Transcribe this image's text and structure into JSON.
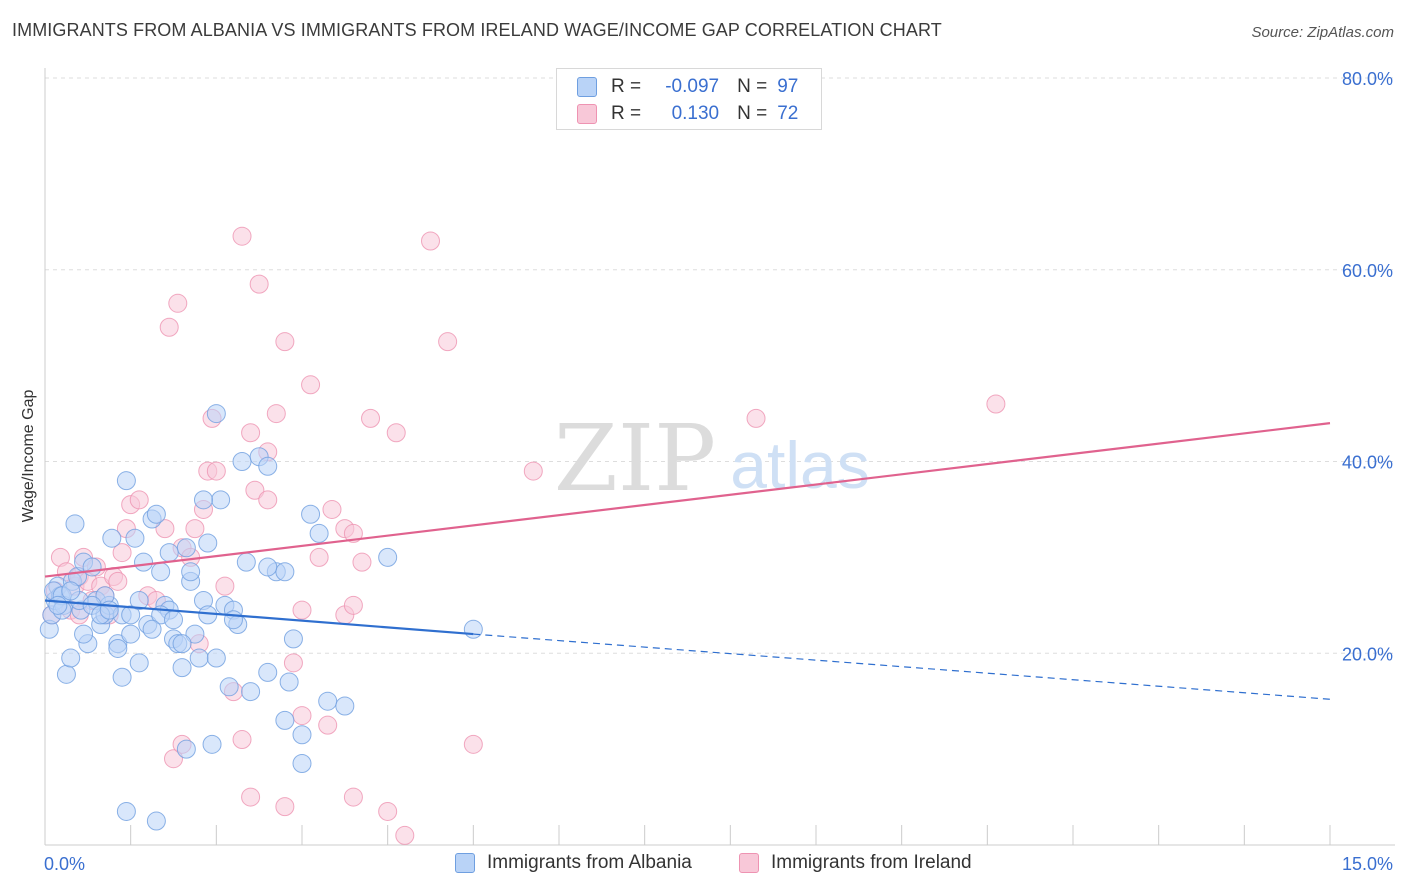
{
  "title": "IMMIGRANTS FROM ALBANIA VS IMMIGRANTS FROM IRELAND WAGE/INCOME GAP CORRELATION CHART",
  "source": "Source: ZipAtlas.com",
  "watermark": {
    "zip": "ZIP",
    "atlas": "atlas"
  },
  "stats": [
    {
      "r_label": "R =",
      "r_value": "-0.097",
      "n_label": "N =",
      "n_value": "97"
    },
    {
      "r_label": "R =",
      "r_value": "0.130",
      "n_label": "N =",
      "n_value": "72"
    }
  ],
  "colors": {
    "albania_fill": "#b9d3f7",
    "albania_stroke": "#6f9fe0",
    "albania_line": "#2f6fcf",
    "ireland_fill": "#f8c8d8",
    "ireland_stroke": "#ee93b2",
    "ireland_line": "#e0628e",
    "axis_label": "#3a6fd0",
    "grid": "#dddddd"
  },
  "chart_data": {
    "type": "scatter",
    "title": "IMMIGRANTS FROM ALBANIA VS IMMIGRANTS FROM IRELAND WAGE/INCOME GAP CORRELATION CHART",
    "xlabel": "",
    "ylabel": "Wage/Income Gap",
    "xlim": [
      0,
      15
    ],
    "ylim": [
      0,
      80
    ],
    "x_tick_labels": [
      {
        "value": 0,
        "label": "0.0%"
      },
      {
        "value": 15,
        "label": "15.0%"
      }
    ],
    "y_tick_labels": [
      {
        "value": 20,
        "label": "20.0%"
      },
      {
        "value": 40,
        "label": "40.0%"
      },
      {
        "value": 60,
        "label": "60.0%"
      },
      {
        "value": 80,
        "label": "80.0%"
      }
    ],
    "legend": [
      "Immigrants from Albania",
      "Immigrants from Ireland"
    ],
    "series": [
      {
        "name": "Immigrants from Albania",
        "points": [
          [
            0.05,
            22.5
          ],
          [
            0.08,
            24.0
          ],
          [
            0.12,
            25.5
          ],
          [
            0.15,
            27.0
          ],
          [
            0.18,
            26.0
          ],
          [
            0.22,
            25.0
          ],
          [
            0.25,
            17.8
          ],
          [
            0.3,
            19.5
          ],
          [
            0.32,
            27.5
          ],
          [
            0.35,
            33.5
          ],
          [
            0.38,
            28.0
          ],
          [
            0.42,
            24.5
          ],
          [
            0.45,
            29.5
          ],
          [
            0.5,
            21.0
          ],
          [
            0.55,
            29.0
          ],
          [
            0.6,
            25.5
          ],
          [
            0.65,
            23.0
          ],
          [
            0.7,
            24.0
          ],
          [
            0.75,
            25.0
          ],
          [
            0.78,
            32.0
          ],
          [
            0.85,
            21.0
          ],
          [
            0.9,
            17.5
          ],
          [
            0.95,
            38.0
          ],
          [
            1.0,
            22.0
          ],
          [
            1.05,
            32.0
          ],
          [
            1.1,
            19.0
          ],
          [
            1.15,
            29.5
          ],
          [
            1.2,
            23.0
          ],
          [
            1.25,
            34.0
          ],
          [
            1.3,
            34.5
          ],
          [
            1.35,
            28.5
          ],
          [
            1.4,
            25.0
          ],
          [
            1.45,
            24.5
          ],
          [
            1.5,
            21.5
          ],
          [
            1.55,
            21.0
          ],
          [
            1.6,
            18.5
          ],
          [
            1.65,
            31.0
          ],
          [
            1.7,
            27.5
          ],
          [
            1.75,
            22.0
          ],
          [
            1.8,
            19.5
          ],
          [
            1.85,
            25.5
          ],
          [
            1.9,
            24.0
          ],
          [
            1.95,
            10.5
          ],
          [
            2.0,
            45.0
          ],
          [
            2.05,
            36.0
          ],
          [
            2.1,
            25.0
          ],
          [
            2.15,
            16.5
          ],
          [
            2.2,
            24.5
          ],
          [
            2.25,
            23.0
          ],
          [
            2.3,
            40.0
          ],
          [
            2.4,
            16.0
          ],
          [
            2.5,
            40.5
          ],
          [
            2.6,
            18.0
          ],
          [
            2.7,
            28.5
          ],
          [
            2.8,
            13.0
          ],
          [
            2.85,
            17.0
          ],
          [
            2.9,
            21.5
          ],
          [
            3.0,
            11.5
          ],
          [
            3.1,
            34.5
          ],
          [
            3.2,
            32.5
          ],
          [
            3.3,
            15.0
          ],
          [
            3.5,
            14.5
          ],
          [
            0.1,
            26.5
          ],
          [
            0.2,
            26.0
          ],
          [
            0.4,
            25.5
          ],
          [
            0.7,
            26.0
          ],
          [
            0.9,
            24.0
          ],
          [
            1.35,
            24.0
          ],
          [
            1.6,
            21.0
          ],
          [
            1.9,
            31.5
          ],
          [
            2.0,
            19.5
          ],
          [
            2.2,
            23.5
          ],
          [
            2.6,
            39.5
          ],
          [
            2.8,
            28.5
          ],
          [
            1.0,
            24.0
          ],
          [
            0.55,
            25.0
          ],
          [
            0.3,
            26.5
          ],
          [
            1.25,
            22.5
          ],
          [
            0.65,
            24.0
          ],
          [
            1.45,
            30.5
          ],
          [
            0.95,
            3.5
          ],
          [
            1.3,
            2.5
          ],
          [
            1.65,
            10.0
          ],
          [
            3.0,
            8.5
          ],
          [
            2.6,
            29.0
          ],
          [
            1.1,
            25.5
          ],
          [
            0.85,
            20.5
          ],
          [
            0.45,
            22.0
          ],
          [
            1.7,
            28.5
          ],
          [
            0.2,
            24.5
          ],
          [
            1.5,
            23.5
          ],
          [
            4.0,
            30.0
          ],
          [
            5.0,
            22.5
          ],
          [
            0.15,
            25.0
          ],
          [
            2.35,
            29.5
          ],
          [
            1.85,
            36.0
          ],
          [
            0.75,
            24.5
          ]
        ]
      },
      {
        "name": "Immigrants from Ireland",
        "points": [
          [
            0.08,
            24.0
          ],
          [
            0.12,
            26.5
          ],
          [
            0.18,
            30.0
          ],
          [
            0.25,
            28.5
          ],
          [
            0.3,
            24.5
          ],
          [
            0.35,
            27.0
          ],
          [
            0.4,
            28.0
          ],
          [
            0.45,
            30.0
          ],
          [
            0.5,
            27.5
          ],
          [
            0.55,
            25.5
          ],
          [
            0.6,
            29.0
          ],
          [
            0.65,
            27.0
          ],
          [
            0.7,
            26.0
          ],
          [
            0.75,
            24.0
          ],
          [
            0.8,
            28.0
          ],
          [
            0.85,
            27.5
          ],
          [
            0.9,
            30.5
          ],
          [
            0.95,
            33.0
          ],
          [
            1.0,
            35.5
          ],
          [
            1.1,
            36.0
          ],
          [
            1.2,
            26.0
          ],
          [
            1.3,
            25.5
          ],
          [
            1.4,
            33.0
          ],
          [
            1.45,
            54.0
          ],
          [
            1.55,
            56.5
          ],
          [
            1.6,
            31.0
          ],
          [
            1.7,
            30.0
          ],
          [
            1.75,
            33.0
          ],
          [
            1.85,
            35.0
          ],
          [
            1.9,
            39.0
          ],
          [
            1.95,
            44.5
          ],
          [
            2.0,
            39.0
          ],
          [
            2.1,
            27.0
          ],
          [
            2.2,
            16.0
          ],
          [
            2.3,
            63.5
          ],
          [
            2.4,
            43.0
          ],
          [
            2.45,
            37.0
          ],
          [
            2.5,
            58.5
          ],
          [
            2.6,
            36.0
          ],
          [
            2.7,
            45.0
          ],
          [
            2.8,
            52.5
          ],
          [
            2.9,
            19.0
          ],
          [
            3.0,
            13.5
          ],
          [
            3.1,
            48.0
          ],
          [
            3.2,
            30.0
          ],
          [
            3.35,
            35.0
          ],
          [
            3.5,
            33.0
          ],
          [
            3.6,
            32.5
          ],
          [
            3.7,
            29.5
          ],
          [
            3.8,
            44.5
          ],
          [
            4.1,
            43.0
          ],
          [
            4.5,
            63.0
          ],
          [
            4.7,
            52.5
          ],
          [
            5.0,
            10.5
          ],
          [
            5.7,
            39.0
          ],
          [
            8.3,
            44.5
          ],
          [
            11.1,
            46.0
          ],
          [
            1.5,
            9.0
          ],
          [
            1.6,
            10.5
          ],
          [
            2.3,
            11.0
          ],
          [
            2.4,
            5.0
          ],
          [
            2.8,
            4.0
          ],
          [
            3.3,
            12.5
          ],
          [
            3.6,
            5.0
          ],
          [
            4.0,
            3.5
          ],
          [
            4.2,
            1.0
          ],
          [
            3.0,
            24.5
          ],
          [
            3.5,
            24.0
          ],
          [
            1.8,
            21.0
          ],
          [
            0.4,
            24.0
          ],
          [
            3.6,
            25.0
          ],
          [
            2.6,
            41.0
          ]
        ]
      }
    ],
    "trend_lines": [
      {
        "series": "Immigrants from Albania",
        "solid_from": [
          0.0,
          25.5
        ],
        "solid_to": [
          5.0,
          22.0
        ],
        "dashed_to": [
          15.0,
          15.2
        ]
      },
      {
        "series": "Immigrants from Ireland",
        "from": [
          0.0,
          28.0
        ],
        "to": [
          15.0,
          44.0
        ]
      }
    ]
  }
}
